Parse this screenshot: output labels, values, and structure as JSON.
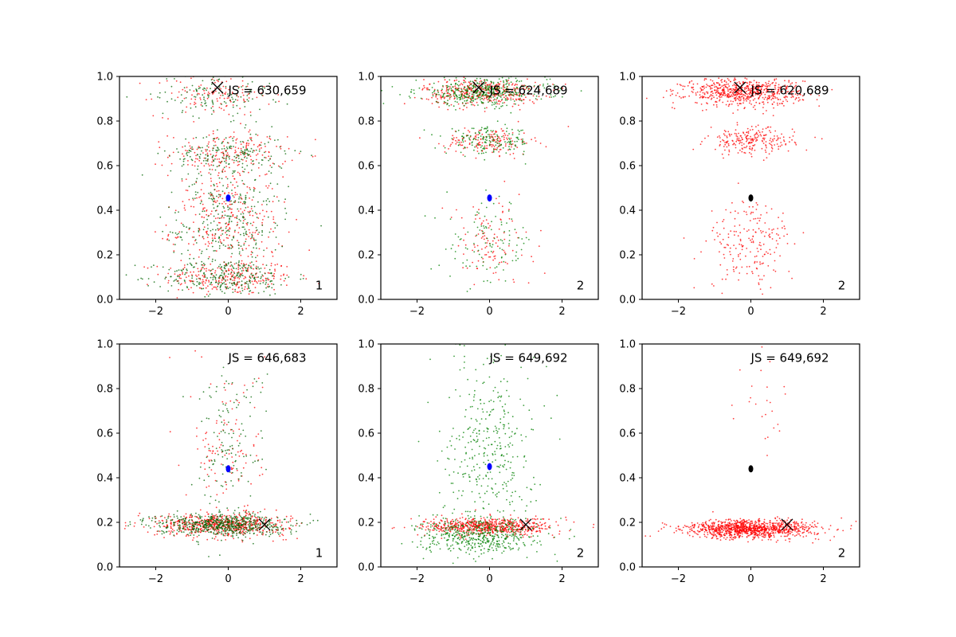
{
  "figure": {
    "description_title": ""
  },
  "chart_data": [
    {
      "type": "scatter",
      "panel": "row1-col1",
      "annotation": "JS = 630,659",
      "corner_label": "1",
      "xlim": [
        -3,
        3
      ],
      "ylim": [
        0,
        1
      ],
      "xticks": [
        -2,
        0,
        2
      ],
      "yticks": [
        0.0,
        0.2,
        0.4,
        0.6,
        0.8,
        1.0
      ],
      "xtick_labels": [
        "−2",
        "0",
        "2"
      ],
      "ytick_labels": [
        "0.0",
        "0.2",
        "0.4",
        "0.6",
        "0.8",
        "1.0"
      ],
      "marker_x": {
        "x": -0.3,
        "y": 0.95
      },
      "center_marker": {
        "x": 0.0,
        "y": 0.455,
        "color": "#0000ff"
      },
      "series": [
        {
          "name": "red points",
          "color": "#ff0000",
          "clusters": [
            {
              "cx": 0.0,
              "cy": 0.1,
              "sx": 0.9,
              "sy": 0.04,
              "n": 260
            },
            {
              "cx": 0.0,
              "cy": 0.3,
              "sx": 0.8,
              "sy": 0.07,
              "n": 170
            },
            {
              "cx": 0.0,
              "cy": 0.45,
              "sx": 0.7,
              "sy": 0.05,
              "n": 110
            },
            {
              "cx": 0.0,
              "cy": 0.65,
              "sx": 0.8,
              "sy": 0.05,
              "n": 200
            },
            {
              "cx": -0.4,
              "cy": 0.92,
              "sx": 0.8,
              "sy": 0.05,
              "n": 130
            }
          ]
        },
        {
          "name": "green points",
          "color": "#006400",
          "clusters": [
            {
              "cx": 0.0,
              "cy": 0.1,
              "sx": 0.9,
              "sy": 0.04,
              "n": 260
            },
            {
              "cx": 0.0,
              "cy": 0.3,
              "sx": 0.8,
              "sy": 0.07,
              "n": 170
            },
            {
              "cx": 0.0,
              "cy": 0.45,
              "sx": 0.7,
              "sy": 0.05,
              "n": 110
            },
            {
              "cx": 0.0,
              "cy": 0.65,
              "sx": 0.8,
              "sy": 0.05,
              "n": 200
            },
            {
              "cx": -0.4,
              "cy": 0.92,
              "sx": 0.8,
              "sy": 0.05,
              "n": 130
            }
          ]
        }
      ]
    },
    {
      "type": "scatter",
      "panel": "row1-col2",
      "annotation": "JS = 624,689",
      "corner_label": "2",
      "xlim": [
        -3,
        3
      ],
      "ylim": [
        0,
        1
      ],
      "xticks": [
        -2,
        0,
        2
      ],
      "yticks": [
        0.0,
        0.2,
        0.4,
        0.6,
        0.8,
        1.0
      ],
      "xtick_labels": [
        "−2",
        "0",
        "2"
      ],
      "ytick_labels": [
        "0.0",
        "0.2",
        "0.4",
        "0.6",
        "0.8",
        "1.0"
      ],
      "marker_x": {
        "x": -0.3,
        "y": 0.95
      },
      "center_marker": {
        "x": 0.0,
        "y": 0.455,
        "color": "#0000ff"
      },
      "series": [
        {
          "name": "red points",
          "color": "#ff0000",
          "clusters": [
            {
              "cx": -0.2,
              "cy": 0.93,
              "sx": 0.8,
              "sy": 0.03,
              "n": 420
            },
            {
              "cx": 0.0,
              "cy": 0.71,
              "sx": 0.6,
              "sy": 0.03,
              "n": 160
            },
            {
              "cx": 0.0,
              "cy": 0.25,
              "sx": 0.6,
              "sy": 0.1,
              "n": 110
            }
          ]
        },
        {
          "name": "green points",
          "color": "#008000",
          "clusters": [
            {
              "cx": -0.2,
              "cy": 0.93,
              "sx": 0.9,
              "sy": 0.03,
              "n": 420
            },
            {
              "cx": 0.0,
              "cy": 0.71,
              "sx": 0.6,
              "sy": 0.03,
              "n": 160
            },
            {
              "cx": 0.0,
              "cy": 0.25,
              "sx": 0.6,
              "sy": 0.1,
              "n": 110
            }
          ]
        }
      ]
    },
    {
      "type": "scatter",
      "panel": "row1-col3",
      "annotation": "JS = 620,689",
      "corner_label": "2",
      "xlim": [
        -3,
        3
      ],
      "ylim": [
        0,
        1
      ],
      "xticks": [
        -2,
        0,
        2
      ],
      "yticks": [
        0.0,
        0.2,
        0.4,
        0.6,
        0.8,
        1.0
      ],
      "xtick_labels": [
        "−2",
        "0",
        "2"
      ],
      "ytick_labels": [
        "0.0",
        "0.2",
        "0.4",
        "0.6",
        "0.8",
        "1.0"
      ],
      "marker_x": {
        "x": -0.3,
        "y": 0.95
      },
      "center_marker": {
        "x": 0.0,
        "y": 0.455,
        "color": "#000000"
      },
      "series": [
        {
          "name": "red points",
          "color": "#ff0000",
          "clusters": [
            {
              "cx": -0.2,
              "cy": 0.93,
              "sx": 0.8,
              "sy": 0.03,
              "n": 650
            },
            {
              "cx": 0.0,
              "cy": 0.71,
              "sx": 0.6,
              "sy": 0.03,
              "n": 230
            },
            {
              "cx": 0.0,
              "cy": 0.25,
              "sx": 0.6,
              "sy": 0.1,
              "n": 200
            }
          ]
        }
      ]
    },
    {
      "type": "scatter",
      "panel": "row2-col1",
      "annotation": "JS = 646,683",
      "corner_label": "1",
      "xlim": [
        -3,
        3
      ],
      "ylim": [
        0,
        1
      ],
      "xticks": [
        -2,
        0,
        2
      ],
      "yticks": [
        0.0,
        0.2,
        0.4,
        0.6,
        0.8,
        1.0
      ],
      "xtick_labels": [
        "−2",
        "0",
        "2"
      ],
      "ytick_labels": [
        "0.0",
        "0.2",
        "0.4",
        "0.6",
        "0.8",
        "1.0"
      ],
      "marker_x": {
        "x": 1.0,
        "y": 0.19
      },
      "center_marker": {
        "x": 0.0,
        "y": 0.44,
        "color": "#0000ff"
      },
      "series": [
        {
          "name": "red points",
          "color": "#ff0000",
          "clusters": [
            {
              "cx": -0.2,
              "cy": 0.19,
              "sx": 0.9,
              "sy": 0.025,
              "n": 600
            },
            {
              "cx": 0.0,
              "cy": 0.55,
              "sx": 0.5,
              "sy": 0.18,
              "n": 120
            }
          ]
        },
        {
          "name": "green points",
          "color": "#006400",
          "clusters": [
            {
              "cx": -0.2,
              "cy": 0.19,
              "sx": 0.9,
              "sy": 0.025,
              "n": 600
            },
            {
              "cx": 0.0,
              "cy": 0.55,
              "sx": 0.5,
              "sy": 0.18,
              "n": 140
            }
          ]
        }
      ]
    },
    {
      "type": "scatter",
      "panel": "row2-col2",
      "annotation": "JS = 649,692",
      "corner_label": "2",
      "xlim": [
        -3,
        3
      ],
      "ylim": [
        0,
        1
      ],
      "xticks": [
        -2,
        0,
        2
      ],
      "yticks": [
        0.0,
        0.2,
        0.4,
        0.6,
        0.8,
        1.0
      ],
      "xtick_labels": [
        "−2",
        "0",
        "2"
      ],
      "ytick_labels": [
        "0.0",
        "0.2",
        "0.4",
        "0.6",
        "0.8",
        "1.0"
      ],
      "marker_x": {
        "x": 1.0,
        "y": 0.19
      },
      "center_marker": {
        "x": 0.0,
        "y": 0.45,
        "color": "#0000ff"
      },
      "series": [
        {
          "name": "red points",
          "color": "#ff0000",
          "clusters": [
            {
              "cx": 0.0,
              "cy": 0.18,
              "sx": 0.9,
              "sy": 0.02,
              "n": 650
            }
          ]
        },
        {
          "name": "green points",
          "color": "#008000",
          "clusters": [
            {
              "cx": -0.3,
              "cy": 0.14,
              "sx": 0.8,
              "sy": 0.04,
              "n": 500
            },
            {
              "cx": 0.0,
              "cy": 0.55,
              "sx": 0.6,
              "sy": 0.2,
              "n": 350
            }
          ]
        }
      ]
    },
    {
      "type": "scatter",
      "panel": "row2-col3",
      "annotation": "JS = 649,692",
      "corner_label": "2",
      "xlim": [
        -3,
        3
      ],
      "ylim": [
        0,
        1
      ],
      "xticks": [
        -2,
        0,
        2
      ],
      "yticks": [
        0.0,
        0.2,
        0.4,
        0.6,
        0.8,
        1.0
      ],
      "xtick_labels": [
        "−2",
        "0",
        "2"
      ],
      "ytick_labels": [
        "0.0",
        "0.2",
        "0.4",
        "0.6",
        "0.8",
        "1.0"
      ],
      "marker_x": {
        "x": 1.0,
        "y": 0.19
      },
      "center_marker": {
        "x": 0.0,
        "y": 0.44,
        "color": "#000000"
      },
      "series": [
        {
          "name": "red points",
          "color": "#ff0000",
          "clusters": [
            {
              "cx": 0.0,
              "cy": 0.17,
              "sx": 0.9,
              "sy": 0.02,
              "n": 1100
            },
            {
              "cx": 0.3,
              "cy": 0.7,
              "sx": 0.3,
              "sy": 0.15,
              "n": 25
            }
          ]
        }
      ]
    }
  ]
}
